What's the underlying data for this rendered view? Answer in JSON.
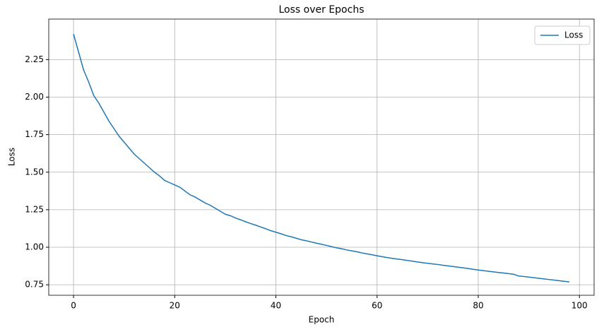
{
  "chart_data": {
    "type": "line",
    "title": "Loss over Epochs",
    "xlabel": "Epoch",
    "ylabel": "Loss",
    "x": [
      0,
      1,
      2,
      3,
      4,
      5,
      6,
      7,
      8,
      9,
      10,
      11,
      12,
      13,
      14,
      15,
      16,
      17,
      18,
      19,
      20,
      21,
      22,
      23,
      24,
      25,
      26,
      27,
      28,
      29,
      30,
      31,
      32,
      33,
      34,
      35,
      36,
      37,
      38,
      39,
      40,
      41,
      42,
      43,
      44,
      45,
      46,
      47,
      48,
      49,
      50,
      51,
      52,
      53,
      54,
      55,
      56,
      57,
      58,
      59,
      60,
      61,
      62,
      63,
      64,
      65,
      66,
      67,
      68,
      69,
      70,
      71,
      72,
      73,
      74,
      75,
      76,
      77,
      78,
      79,
      80,
      81,
      82,
      83,
      84,
      85,
      86,
      87,
      88,
      89,
      90,
      91,
      92,
      93,
      94,
      95,
      96,
      97,
      98
    ],
    "series": [
      {
        "name": "Loss",
        "color": "#1f77b4",
        "values": [
          2.42,
          2.3,
          2.18,
          2.1,
          2.01,
          1.96,
          1.9,
          1.84,
          1.79,
          1.74,
          1.7,
          1.66,
          1.62,
          1.59,
          1.56,
          1.53,
          1.5,
          1.475,
          1.445,
          1.43,
          1.415,
          1.4,
          1.375,
          1.35,
          1.335,
          1.315,
          1.295,
          1.28,
          1.26,
          1.24,
          1.22,
          1.21,
          1.195,
          1.183,
          1.17,
          1.158,
          1.147,
          1.135,
          1.123,
          1.11,
          1.1,
          1.09,
          1.078,
          1.07,
          1.06,
          1.05,
          1.043,
          1.035,
          1.027,
          1.02,
          1.012,
          1.004,
          0.996,
          0.99,
          0.982,
          0.976,
          0.97,
          0.962,
          0.956,
          0.95,
          0.943,
          0.937,
          0.931,
          0.926,
          0.921,
          0.917,
          0.912,
          0.907,
          0.902,
          0.897,
          0.893,
          0.889,
          0.885,
          0.88,
          0.876,
          0.872,
          0.867,
          0.863,
          0.858,
          0.853,
          0.848,
          0.844,
          0.84,
          0.836,
          0.832,
          0.828,
          0.824,
          0.82,
          0.808,
          0.805,
          0.801,
          0.797,
          0.793,
          0.789,
          0.785,
          0.781,
          0.777,
          0.773,
          0.769
        ]
      }
    ],
    "xlim": [
      -4.9,
      102.9
    ],
    "ylim": [
      0.68,
      2.52
    ],
    "xticks": [
      0,
      20,
      40,
      60,
      80,
      100
    ],
    "yticks": [
      0.75,
      {
        "value": 1,
        "label": "1.00"
      },
      1.25,
      {
        "value": 1.5,
        "label": "1.50"
      },
      1.75,
      {
        "value": 2,
        "label": "2.00"
      },
      2.25
    ],
    "grid": true,
    "legend": "upper right"
  }
}
